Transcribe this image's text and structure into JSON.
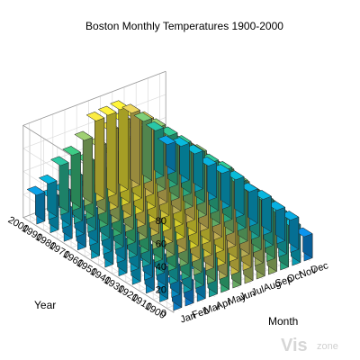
{
  "chart_data": {
    "type": "bar3",
    "title": "Boston Monthly Temperatures 1900-2000",
    "xlabel": "Month",
    "ylabel": "Year",
    "zlabel": "",
    "zlim": [
      0,
      80
    ],
    "zticks": [
      0,
      20,
      40,
      60,
      80
    ],
    "categories": [
      "Jan",
      "Feb",
      "Mar",
      "Apr",
      "May",
      "Jun",
      "Jul",
      "Aug",
      "Sep",
      "Oct",
      "Nov",
      "Dec"
    ],
    "years": [
      1900,
      1910,
      1920,
      1930,
      1940,
      1950,
      1960,
      1970,
      1980,
      1990,
      2000
    ],
    "values": [
      [
        22,
        20,
        26,
        39,
        47,
        54,
        60,
        59,
        58,
        44,
        33,
        21
      ],
      [
        28,
        26,
        35,
        42,
        53,
        62,
        68,
        67,
        60,
        50,
        37,
        28
      ],
      [
        26,
        27,
        37,
        45,
        56,
        63,
        71,
        69,
        63,
        51,
        40,
        29
      ],
      [
        30,
        28,
        37,
        47,
        55,
        67,
        70,
        71,
        64,
        53,
        40,
        31
      ],
      [
        30,
        31,
        38,
        47,
        58,
        65,
        73,
        71,
        64,
        55,
        41,
        30
      ],
      [
        30,
        30,
        39,
        47,
        58,
        68,
        74,
        72,
        64,
        53,
        45,
        33
      ],
      [
        32,
        31,
        40,
        48,
        58,
        67,
        74,
        73,
        65,
        56,
        44,
        31
      ],
      [
        26,
        30,
        38,
        48,
        58,
        67,
        72,
        70,
        63,
        54,
        44,
        30
      ],
      [
        27,
        29,
        38,
        49,
        59,
        68,
        73,
        72,
        64,
        53,
        45,
        33
      ],
      [
        30,
        31,
        40,
        49,
        59,
        69,
        73,
        72,
        66,
        56,
        45,
        32
      ],
      [
        25,
        31,
        43,
        48,
        57,
        70,
        71,
        72,
        65,
        54,
        42,
        26
      ]
    ],
    "colormap": "parula",
    "grid": true
  },
  "watermark": {
    "brand": "Vis",
    "sub": "zone"
  }
}
